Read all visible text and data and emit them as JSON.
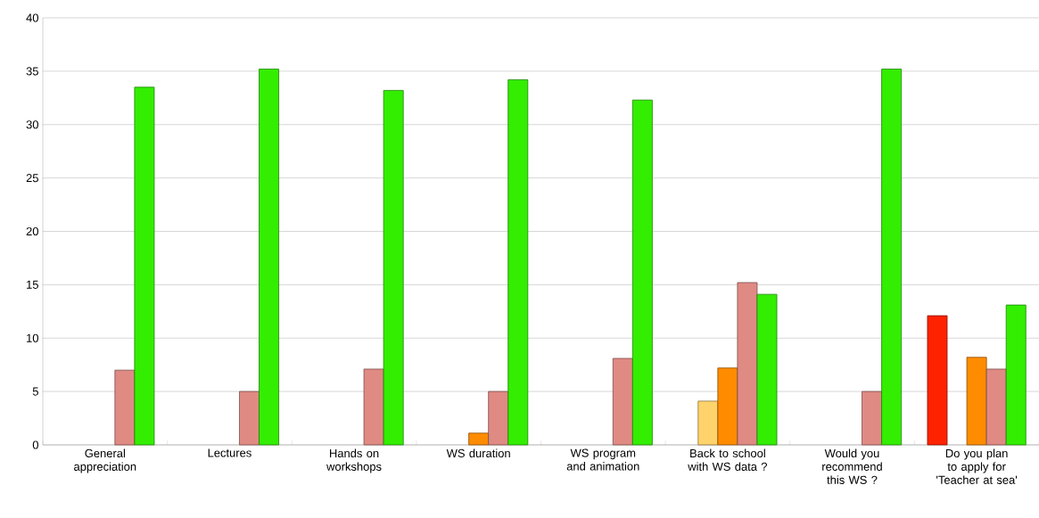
{
  "chart_data": {
    "type": "bar",
    "categories": [
      "General appreciation",
      "Lectures",
      "Hands on workshops",
      "WS duration",
      "WS program and animation",
      "Back to school with WS data ?",
      "Would you recommend this WS ?",
      "Do you plan to apply for 'Teacher at sea'"
    ],
    "series": [
      {
        "color": "#ff2200",
        "values": [
          null,
          null,
          null,
          null,
          null,
          null,
          null,
          12.1
        ]
      },
      {
        "color": "#ffd36b",
        "values": [
          null,
          null,
          null,
          null,
          null,
          4.1,
          null,
          null
        ]
      },
      {
        "color": "#ff8c00",
        "values": [
          null,
          null,
          null,
          1.1,
          null,
          7.2,
          null,
          8.2
        ]
      },
      {
        "color": "#e08a84",
        "values": [
          7,
          5,
          7.1,
          5,
          8.1,
          15.2,
          5,
          7.1
        ]
      },
      {
        "color": "#33ee00",
        "values": [
          33.5,
          35.2,
          33.2,
          34.2,
          32.3,
          14.1,
          35.2,
          13.1
        ]
      }
    ],
    "ylim": [
      0,
      40
    ],
    "yticks": [
      0,
      5,
      10,
      15,
      20,
      25,
      30,
      35,
      40
    ],
    "grid": "y"
  }
}
